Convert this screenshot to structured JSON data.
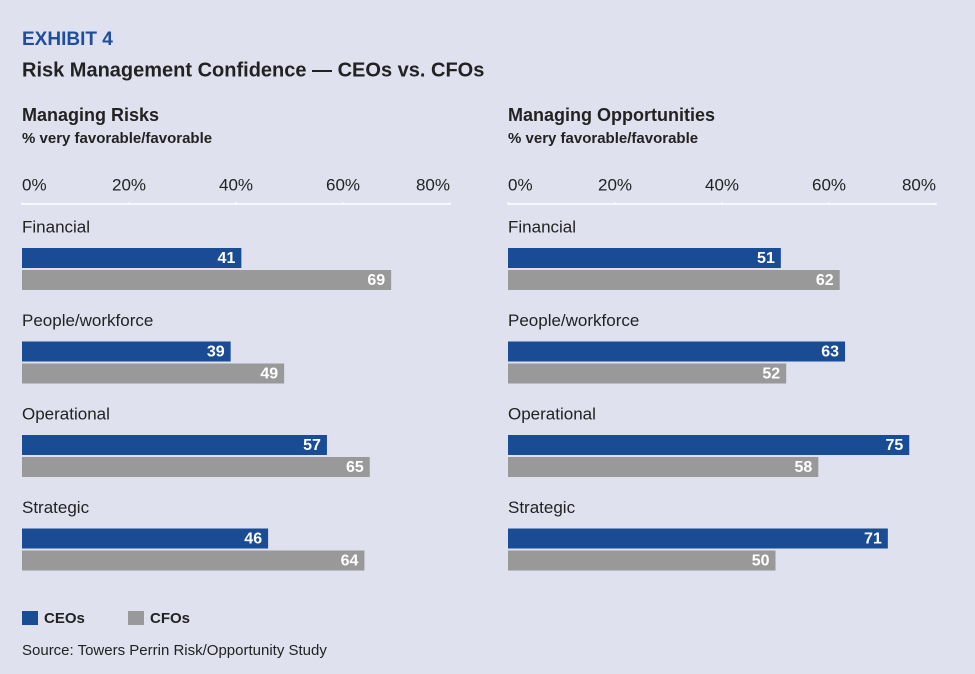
{
  "exhibit": "EXHIBIT 4",
  "title": "Risk Management Confidence — CEOs vs. CFOs",
  "source": "Source: Towers Perrin Risk/Opportunity Study",
  "chart_data": [
    {
      "type": "bar",
      "orientation": "horizontal",
      "title": "Managing Risks",
      "subtitle": "% very favorable/favorable",
      "categories": [
        "Financial",
        "People/workforce",
        "Operational",
        "Strategic"
      ],
      "series": [
        {
          "name": "CEOs",
          "color": "#1a4c96",
          "values": [
            41,
            39,
            57,
            46
          ]
        },
        {
          "name": "CFOs",
          "color": "#999999",
          "values": [
            69,
            49,
            65,
            64
          ]
        }
      ],
      "xlim": [
        0,
        80
      ],
      "xticks": [
        {
          "value": 0,
          "label": "0%"
        },
        {
          "value": 20,
          "label": "20%"
        },
        {
          "value": 40,
          "label": "40%"
        },
        {
          "value": 60,
          "label": "60%"
        },
        {
          "value": 80,
          "label": "80%"
        }
      ]
    },
    {
      "type": "bar",
      "orientation": "horizontal",
      "title": "Managing Opportunities",
      "subtitle": "% very favorable/favorable",
      "categories": [
        "Financial",
        "People/workforce",
        "Operational",
        "Strategic"
      ],
      "series": [
        {
          "color": "#1a4c96",
          "values": [
            51,
            63,
            75,
            71
          ]
        },
        {
          "color": "#999999",
          "values": [
            62,
            52,
            58,
            50
          ]
        }
      ],
      "xlim": [
        0,
        80
      ],
      "xticks": [
        {
          "value": 0,
          "label": "0%"
        },
        {
          "value": 20,
          "label": "20%"
        },
        {
          "value": 40,
          "label": "40%"
        },
        {
          "value": 60,
          "label": "60%"
        },
        {
          "value": 80,
          "label": "80%"
        }
      ]
    }
  ]
}
